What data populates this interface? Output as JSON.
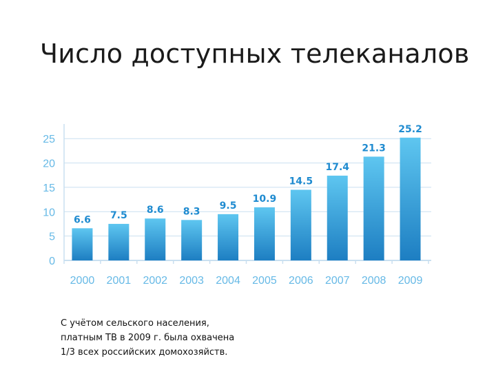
{
  "slide": {
    "title": "Число доступных телеканалов"
  },
  "note": {
    "lines": [
      "С учётом сельского населения,",
      "платным ТВ в 2009 г. была охвачена",
      "1/3 всех российских домохозяйств."
    ]
  },
  "chart_data": {
    "type": "bar",
    "title": "",
    "xlabel": "",
    "ylabel": "",
    "categories": [
      "2000",
      "2001",
      "2002",
      "2003",
      "2004",
      "2005",
      "2006",
      "2007",
      "2008",
      "2009"
    ],
    "values": [
      6.6,
      7.5,
      8.6,
      8.3,
      9.5,
      10.9,
      14.5,
      17.4,
      21.3,
      25.2
    ],
    "data_labels": [
      "6.6",
      "7.5",
      "8.6",
      "8.3",
      "9.5",
      "10.9",
      "14.5",
      "17.4",
      "21.3",
      "25.2"
    ],
    "y_ticks": [
      0,
      5,
      10,
      15,
      20,
      25
    ],
    "ylim": [
      0,
      28
    ],
    "grid": true,
    "legend": "none",
    "colors": {
      "bar_top": "#5ec6f0",
      "bar_bottom": "#1d7ec2",
      "label": "#1f8bd0",
      "tick": "#66b9e6",
      "grid": "#c9dff0"
    }
  }
}
